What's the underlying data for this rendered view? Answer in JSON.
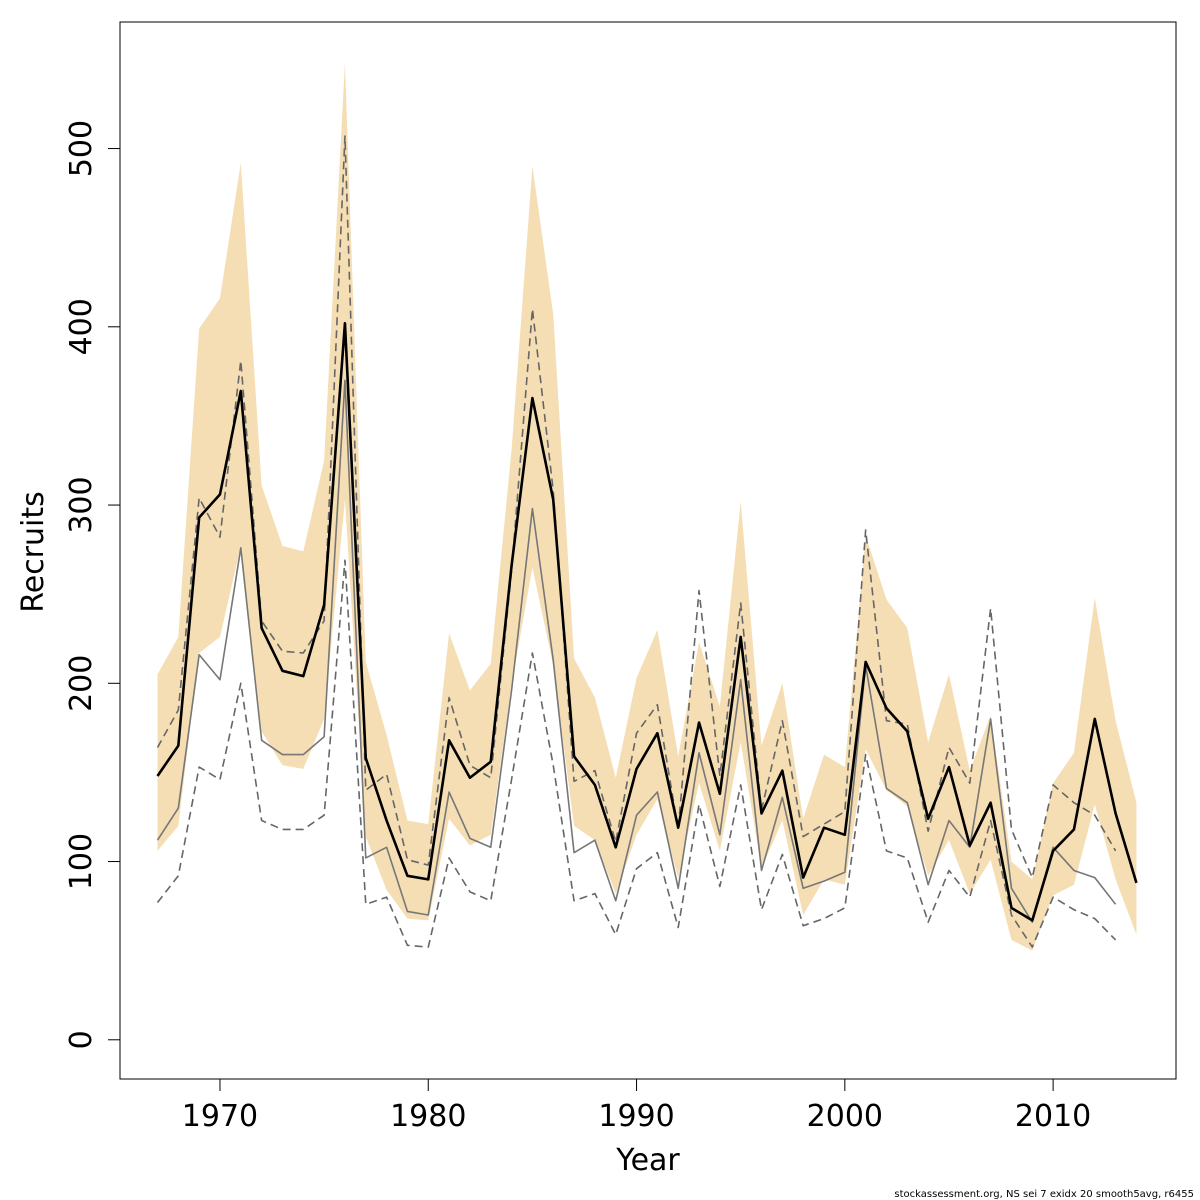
{
  "chart_data": {
    "type": "line",
    "xlabel": "Year",
    "ylabel": "Recruits",
    "footnote": "stockassessment.org, NS sei 7 exidx 20 smooth5avg, r6455",
    "xlim": [
      1965.2,
      2015.9
    ],
    "ylim": [
      -22,
      571
    ],
    "xticks": [
      1970,
      1980,
      1990,
      2000,
      2010
    ],
    "yticks": [
      0,
      100,
      200,
      300,
      400,
      500
    ],
    "x": [
      1967,
      1968,
      1969,
      1970,
      1971,
      1972,
      1973,
      1974,
      1975,
      1976,
      1977,
      1978,
      1979,
      1980,
      1981,
      1982,
      1983,
      1984,
      1985,
      1986,
      1987,
      1988,
      1989,
      1990,
      1991,
      1992,
      1993,
      1994,
      1995,
      1996,
      1997,
      1998,
      1999,
      2000,
      2001,
      2002,
      2003,
      2004,
      2005,
      2006,
      2007,
      2008,
      2009,
      2010,
      2011,
      2012,
      2013,
      2014
    ],
    "band": {
      "color": "#f5deb3",
      "upper": [
        205,
        226,
        399,
        416,
        492,
        311,
        277,
        274,
        325,
        548,
        212,
        171,
        123,
        121,
        228,
        196,
        211,
        331,
        490,
        407,
        214,
        192,
        147,
        203,
        230,
        159,
        223,
        187,
        302,
        165,
        200,
        124,
        160,
        153,
        283,
        247,
        231,
        167,
        205,
        151,
        182,
        100,
        90,
        144,
        161,
        248,
        179,
        133
      ],
      "lower": [
        106,
        120,
        217,
        226,
        277,
        173,
        154,
        152,
        180,
        303,
        114,
        84,
        68,
        67,
        124,
        109,
        115,
        199,
        265,
        210,
        120,
        112,
        82,
        115,
        135,
        91,
        144,
        106,
        167,
        96,
        123,
        70,
        90,
        87,
        163,
        140,
        131,
        92,
        112,
        82,
        101,
        56,
        50,
        81,
        87,
        132,
        90,
        59
      ]
    },
    "series": [
      {
        "color": "#777777",
        "line_style": "solid",
        "line_width": 1.6,
        "values": [
          112,
          130,
          216,
          202,
          276,
          168,
          160,
          160,
          170,
          370,
          102,
          108,
          72,
          70,
          139,
          113,
          108,
          196,
          298,
          213,
          105,
          112,
          78,
          126,
          139,
          85,
          161,
          115,
          202,
          95,
          136,
          85,
          89,
          94,
          210,
          141,
          133,
          87,
          123,
          108,
          180,
          85,
          66,
          108,
          95,
          91,
          76,
          null
        ]
      },
      {
        "color": "#666666",
        "line_style": "dashed",
        "line_width": 1.6,
        "values": [
          164,
          185,
          304,
          282,
          381,
          235,
          218,
          217,
          235,
          507,
          140,
          149,
          101,
          98,
          192,
          154,
          147,
          263,
          410,
          308,
          145,
          151,
          111,
          172,
          188,
          118,
          252,
          148,
          245,
          129,
          179,
          114,
          121,
          128,
          286,
          179,
          177,
          117,
          164,
          144,
          242,
          118,
          91,
          143,
          133,
          126,
          106,
          null
        ]
      },
      {
        "color": "#666666",
        "line_style": "dashed",
        "line_width": 1.6,
        "values": [
          77,
          92,
          153,
          146,
          200,
          123,
          118,
          118,
          126,
          269,
          76,
          80,
          53,
          52,
          102,
          83,
          78,
          146,
          217,
          154,
          78,
          82,
          59,
          96,
          105,
          63,
          132,
          86,
          143,
          73,
          104,
          64,
          68,
          74,
          160,
          106,
          102,
          66,
          95,
          80,
          123,
          70,
          52,
          80,
          73,
          68,
          56,
          null
        ]
      },
      {
        "color": "#000000",
        "line_style": "solid",
        "line_width": 2.6,
        "values": [
          148,
          165,
          293,
          306,
          364,
          231,
          207,
          204,
          244,
          402,
          158,
          123,
          92,
          90,
          168,
          147,
          156,
          266,
          360,
          303,
          159,
          143,
          108,
          152,
          172,
          119,
          178,
          138,
          226,
          127,
          151,
          91,
          119,
          115,
          212,
          186,
          173,
          124,
          153,
          109,
          133,
          74,
          67,
          106,
          118,
          180,
          127,
          88
        ]
      }
    ]
  }
}
